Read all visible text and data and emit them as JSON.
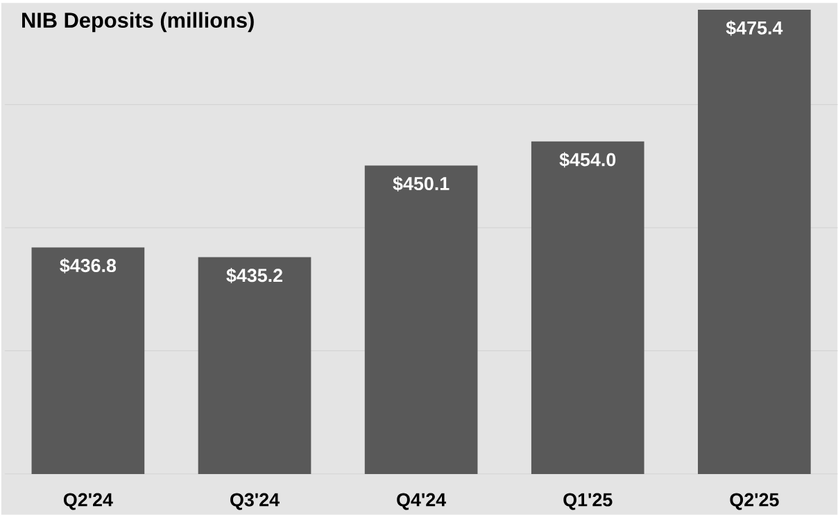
{
  "chart_data": {
    "type": "bar",
    "title": "NIB Deposits (millions)",
    "categories": [
      "Q2'24",
      "Q3'24",
      "Q4'24",
      "Q1'25",
      "Q2'25"
    ],
    "values": [
      436.8,
      435.2,
      450.1,
      454.0,
      475.4
    ],
    "value_labels": [
      "$436.8",
      "$435.2",
      "$450.1",
      "$454.0",
      "$475.4"
    ],
    "color": "#595959",
    "ylim": [
      400,
      476.5
    ],
    "yticks": [
      {
        "value": 400,
        "label": null
      },
      {
        "value": 420,
        "label": null
      },
      {
        "value": 440,
        "label": null
      },
      {
        "value": 460,
        "label": null
      }
    ],
    "grid": "y",
    "tick_labels": "x"
  }
}
